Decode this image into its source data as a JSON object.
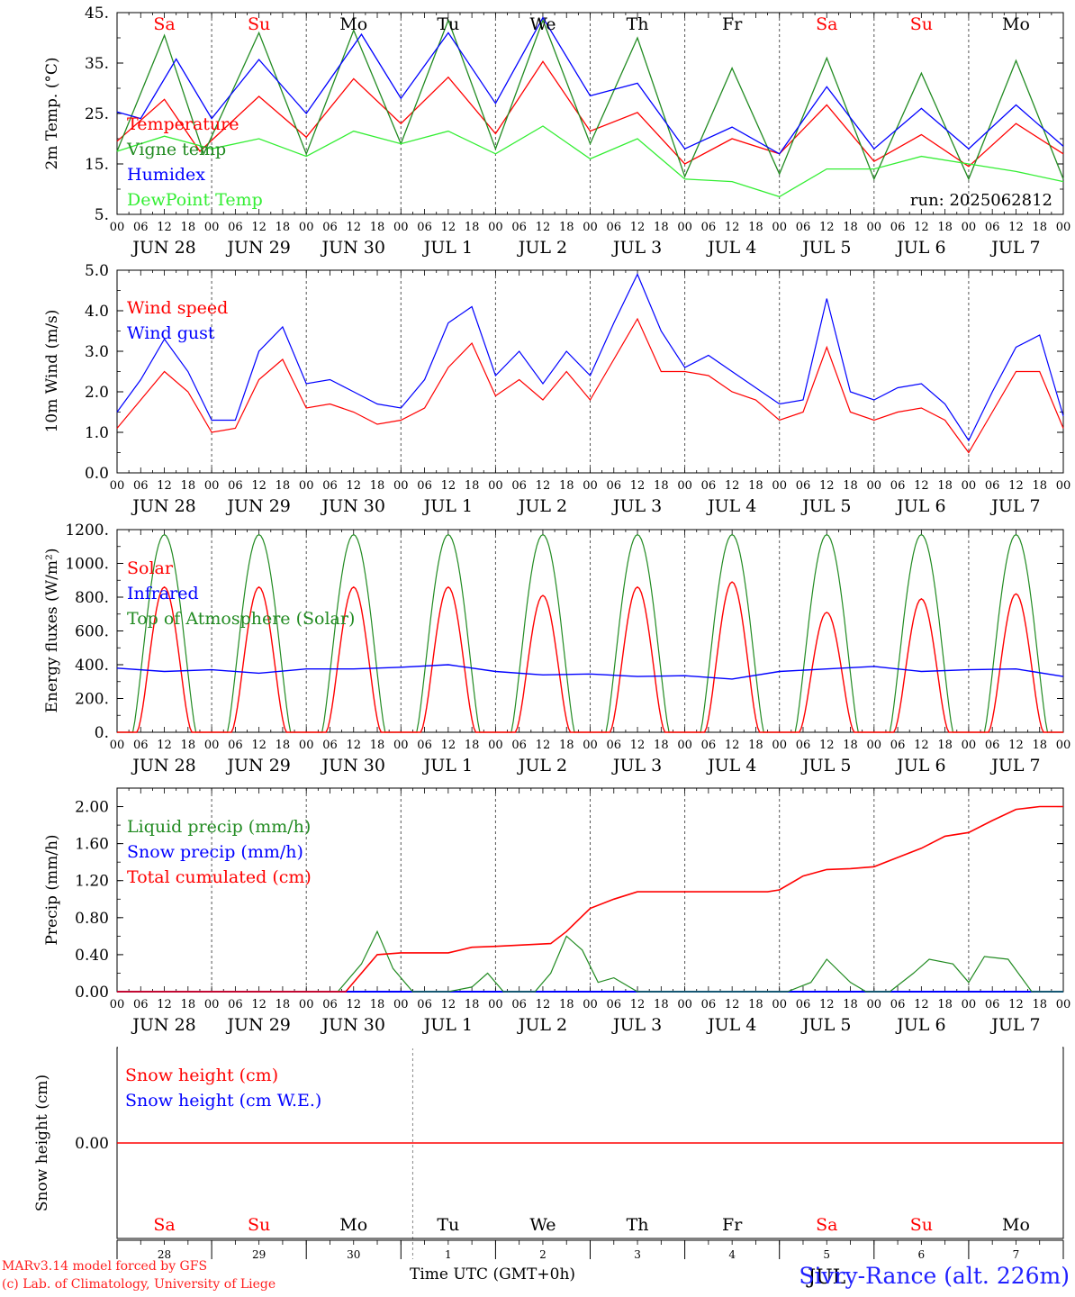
{
  "chart_data": [
    {
      "type": "line",
      "ylabel": "2m Temp. (°C)",
      "ylim": [
        5,
        45
      ],
      "yticks": [
        "5.",
        "15.",
        "25.",
        "35.",
        "45."
      ],
      "annotation": "run: 2025062812",
      "top_labels": [
        "Sa",
        "Su",
        "Mo",
        "Tu",
        "We",
        "Th",
        "Fr",
        "Sa",
        "Su",
        "Mo"
      ],
      "top_colors": [
        "#ff0000",
        "#ff0000",
        "#000000",
        "#000000",
        "#000000",
        "#000000",
        "#000000",
        "#ff0000",
        "#ff0000",
        "#000000"
      ],
      "date_labels": [
        "JUN 28",
        "JUN 29",
        "JUN 30",
        "JUL  1",
        "JUL  2",
        "JUL  3",
        "JUL  4",
        "JUL  5",
        "JUL  6",
        "JUL  7"
      ],
      "series": [
        {
          "name": "Temperature",
          "color": "#ff0000",
          "x_hours": [
            0,
            12,
            21,
            36,
            48,
            60,
            72,
            84,
            96,
            108,
            120,
            132,
            144,
            156,
            168,
            180,
            192,
            204,
            216,
            228,
            240
          ],
          "values": [
            19.5,
            27.8,
            17.5,
            28.4,
            20.3,
            31.9,
            23,
            32.2,
            21,
            35.3,
            21.5,
            25.2,
            15,
            20,
            17,
            26.7,
            15.5,
            20.8,
            14.5,
            23,
            17
          ]
        },
        {
          "name": "Vigne temp",
          "color": "#228b22",
          "x_hours": [
            0,
            12,
            22,
            36,
            48,
            60,
            72,
            84,
            96,
            108,
            120,
            132,
            144,
            156,
            168,
            180,
            192,
            204,
            216,
            228,
            240
          ],
          "values": [
            17.5,
            40.5,
            17,
            41,
            17,
            41.5,
            19,
            43.5,
            18,
            43.5,
            19,
            40,
            12.5,
            34,
            13,
            36,
            12,
            33,
            12,
            35.5,
            12
          ]
        },
        {
          "name": "Humidex",
          "color": "#0000ff",
          "x_hours": [
            0,
            6,
            15,
            24,
            36,
            48,
            62,
            72,
            84,
            96,
            108,
            120,
            132,
            144,
            156,
            168,
            180,
            192,
            204,
            216,
            228,
            240
          ],
          "values": [
            25.3,
            24,
            35.8,
            24,
            35.7,
            25,
            40.7,
            28,
            41,
            27,
            44,
            28.5,
            31,
            18,
            22.3,
            17,
            30.3,
            18,
            26,
            18,
            26.7,
            18.5
          ]
        },
        {
          "name": "DewPoint Temp",
          "color": "#33ee33",
          "x_hours": [
            0,
            12,
            24,
            36,
            48,
            60,
            72,
            84,
            96,
            108,
            120,
            132,
            144,
            156,
            168,
            180,
            192,
            204,
            216,
            228,
            240
          ],
          "values": [
            17.5,
            20.5,
            18,
            20,
            16.5,
            21.5,
            19,
            21.5,
            17,
            22.5,
            16,
            20,
            12,
            11.5,
            8.5,
            14,
            14,
            16.5,
            15,
            13.5,
            11.5
          ]
        }
      ]
    },
    {
      "type": "line",
      "ylabel": "10m Wind (m/s)",
      "ylim": [
        0,
        5.0
      ],
      "yticks": [
        "0.0",
        "1.0",
        "2.0",
        "3.0",
        "4.0",
        "5.0"
      ],
      "date_labels": [
        "JUN 28",
        "JUN 29",
        "JUN 30",
        "JUL  1",
        "JUL  2",
        "JUL  3",
        "JUL  4",
        "JUL  5",
        "JUL  6",
        "JUL  7"
      ],
      "series": [
        {
          "name": "Wind speed",
          "color": "#ff0000",
          "x_hours": [
            0,
            6,
            12,
            18,
            24,
            30,
            36,
            42,
            48,
            54,
            60,
            66,
            72,
            78,
            84,
            90,
            96,
            102,
            108,
            114,
            120,
            126,
            132,
            138,
            144,
            150,
            156,
            162,
            168,
            174,
            180,
            186,
            192,
            198,
            204,
            210,
            216,
            222,
            228,
            234,
            240
          ],
          "values": [
            1.1,
            1.8,
            2.5,
            2.0,
            1.0,
            1.1,
            2.3,
            2.8,
            1.6,
            1.7,
            1.5,
            1.2,
            1.3,
            1.6,
            2.6,
            3.2,
            1.9,
            2.3,
            1.8,
            2.5,
            1.8,
            2.8,
            3.8,
            2.5,
            2.5,
            2.4,
            2.0,
            1.8,
            1.3,
            1.5,
            3.1,
            1.5,
            1.3,
            1.5,
            1.6,
            1.3,
            0.5,
            1.5,
            2.5,
            2.5,
            1.1
          ]
        },
        {
          "name": "Wind gust",
          "color": "#0000ff",
          "x_hours": [
            0,
            6,
            12,
            18,
            24,
            30,
            36,
            42,
            48,
            54,
            60,
            66,
            72,
            78,
            84,
            90,
            96,
            102,
            108,
            114,
            120,
            126,
            132,
            138,
            144,
            150,
            156,
            162,
            168,
            174,
            180,
            186,
            192,
            198,
            204,
            210,
            216,
            222,
            228,
            234,
            240
          ],
          "values": [
            1.5,
            2.3,
            3.3,
            2.5,
            1.3,
            1.3,
            3.0,
            3.6,
            2.2,
            2.3,
            2.0,
            1.7,
            1.6,
            2.3,
            3.7,
            4.1,
            2.4,
            3.0,
            2.2,
            3.0,
            2.4,
            3.7,
            4.9,
            3.5,
            2.6,
            2.9,
            2.5,
            2.1,
            1.7,
            1.8,
            4.3,
            2.0,
            1.8,
            2.1,
            2.2,
            1.7,
            0.8,
            2.0,
            3.1,
            3.4,
            1.4
          ]
        }
      ]
    },
    {
      "type": "line",
      "ylabel": "Energy fluxes (W/m²)",
      "ylim": [
        0,
        1200
      ],
      "yticks": [
        "0.",
        "200.",
        "400.",
        "600.",
        "800.",
        "1000.",
        "1200."
      ],
      "date_labels": [
        "JUN 28",
        "JUN 29",
        "JUN 30",
        "JUL  1",
        "JUL  2",
        "JUL  3",
        "JUL  4",
        "JUL  5",
        "JUL  6",
        "JUL  7"
      ],
      "daily": {
        "solar_peaks": [
          860,
          860,
          860,
          860,
          810,
          860,
          890,
          710,
          790,
          820
        ],
        "toa_peak": 1170,
        "infrared": [
          380,
          360,
          370,
          350,
          375,
          375,
          385,
          400,
          360,
          340,
          345,
          330,
          335,
          315,
          360,
          375,
          390,
          360,
          370,
          375,
          330
        ]
      },
      "series": [
        {
          "name": "Solar",
          "color": "#ff0000"
        },
        {
          "name": "Infrared",
          "color": "#0000ff"
        },
        {
          "name": "Top of Atmosphere (Solar)",
          "color": "#228b22"
        }
      ]
    },
    {
      "type": "line",
      "ylabel": "Precip (mm/h)",
      "ylim": [
        0,
        2.2
      ],
      "yticks": [
        "0.00",
        "0.40",
        "0.80",
        "1.20",
        "1.60",
        "2.00"
      ],
      "date_labels": [
        "JUN 28",
        "JUN 29",
        "JUN 30",
        "JUL  1",
        "JUL  2",
        "JUL  3",
        "JUL  4",
        "JUL  5",
        "JUL  6",
        "JUL  7"
      ],
      "series": [
        {
          "name": "Liquid precip (mm/h)",
          "color": "#228b22",
          "x_hours": [
            0,
            56,
            62,
            66,
            70,
            75,
            78,
            84,
            90,
            94,
            98,
            106,
            110,
            114,
            118,
            122,
            126,
            132,
            138,
            142,
            146,
            150,
            154,
            160,
            170,
            176,
            180,
            186,
            190,
            196,
            202,
            206,
            212,
            216,
            220,
            226,
            232,
            240
          ],
          "values": [
            0,
            0,
            0.3,
            0.65,
            0.25,
            0,
            0,
            0,
            0.05,
            0.2,
            0,
            0,
            0.2,
            0.6,
            0.45,
            0.1,
            0.15,
            0,
            0,
            0,
            0,
            0,
            0,
            0,
            0,
            0.1,
            0.35,
            0.1,
            0,
            0,
            0.2,
            0.35,
            0.3,
            0.1,
            0.38,
            0.35,
            0,
            0
          ]
        },
        {
          "name": "Snow precip (mm/h)",
          "color": "#0000ff",
          "x_hours": [
            0,
            240
          ],
          "values": [
            0,
            0
          ]
        },
        {
          "name": "Total cumulated (cm)",
          "color": "#ff0000",
          "x_hours": [
            0,
            58,
            66,
            72,
            84,
            90,
            96,
            110,
            114,
            120,
            126,
            132,
            144,
            156,
            165,
            168,
            174,
            180,
            186,
            192,
            198,
            204,
            210,
            216,
            222,
            228,
            234,
            240
          ],
          "values": [
            0,
            0,
            0.4,
            0.42,
            0.42,
            0.48,
            0.49,
            0.52,
            0.65,
            0.9,
            1.0,
            1.08,
            1.08,
            1.08,
            1.08,
            1.1,
            1.25,
            1.32,
            1.33,
            1.35,
            1.45,
            1.55,
            1.68,
            1.72,
            1.85,
            1.97,
            2.0,
            2.0
          ]
        }
      ]
    },
    {
      "type": "line",
      "ylabel": "Snow height (cm)",
      "ylim": [
        -1,
        1
      ],
      "yticks": [
        "0.00"
      ],
      "day_numbers": [
        "28",
        "29",
        "30",
        "1",
        "2",
        "3",
        "4",
        "5",
        "6",
        "7"
      ],
      "series": [
        {
          "name": "Snow height (cm)",
          "color": "#ff0000",
          "x_hours": [
            0,
            240
          ],
          "values": [
            0,
            0
          ]
        },
        {
          "name": "Snow height (cm W.E.)",
          "color": "#0000ff"
        }
      ]
    }
  ],
  "footer": {
    "credit_line1": "MARv3.14 model forced by GFS",
    "credit_line2": "(c) Lab. of Climatology, University of Liege",
    "xlabel": "Time UTC (GMT+0h)",
    "station": "Sivry-Rance (alt. 226m)",
    "month_label": "JUL"
  },
  "hour_ticks": [
    "00",
    "06",
    "12",
    "18"
  ],
  "last_tick": "00"
}
